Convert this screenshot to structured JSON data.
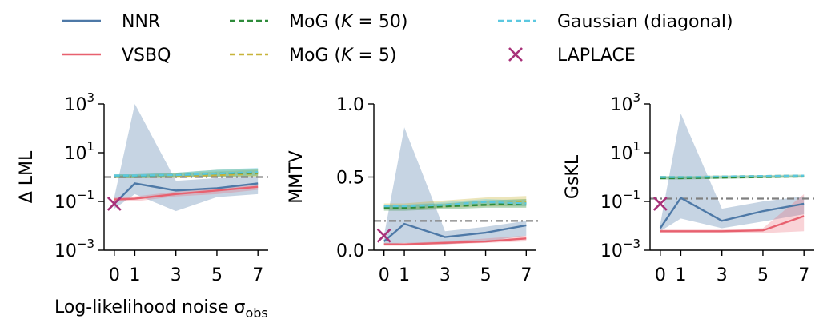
{
  "legend": [
    {
      "id": "nnr",
      "label": "NNR",
      "color": "#4e79a7",
      "style": "solid"
    },
    {
      "id": "vsbq",
      "label": "VSBQ",
      "color": "#e8616f",
      "style": "solid"
    },
    {
      "id": "mog50",
      "label": "MoG (K = 50)",
      "color": "#2e8b3a",
      "style": "dashed"
    },
    {
      "id": "mog5",
      "label": "MoG (K = 5)",
      "color": "#c8b43a",
      "style": "dashed"
    },
    {
      "id": "gauss",
      "label": "Gaussian (diagonal)",
      "color": "#5bc8e0",
      "style": "dashed"
    },
    {
      "id": "laplace",
      "label": "LAPLACE",
      "color": "#a8327a",
      "style": "marker-x"
    }
  ],
  "xlabel": "Log-likelihood noise σ",
  "xlabel_sub": "obs",
  "chart_data": [
    {
      "type": "line",
      "ylabel": "Δ LML",
      "yscale": "log",
      "ylim": [
        0.001,
        1000
      ],
      "yticks": [
        {
          "value": 0.001,
          "base": "10",
          "exp": "−3"
        },
        {
          "value": 0.1,
          "base": "10",
          "exp": "−1"
        },
        {
          "value": 10,
          "base": "10",
          "exp": "1"
        },
        {
          "value": 1000,
          "base": "10",
          "exp": "3"
        }
      ],
      "x": [
        0,
        1,
        3,
        5,
        7
      ],
      "xticks": [
        "0",
        "1",
        "3",
        "5",
        "7"
      ],
      "xlim": [
        -0.5,
        7.5
      ],
      "reference_line": 1.0,
      "laplace": {
        "x": 0,
        "y": 0.08
      },
      "series": [
        {
          "id": "nnr",
          "x": [
            0,
            1,
            3,
            5,
            7
          ],
          "values": [
            0.08,
            0.55,
            0.28,
            0.35,
            0.55
          ],
          "band_low": [
            0.05,
            0.2,
            0.04,
            0.15,
            0.2
          ],
          "band_high": [
            0.15,
            1000,
            0.7,
            0.9,
            1.0
          ]
        },
        {
          "id": "vsbq",
          "x": [
            0,
            1,
            3,
            5,
            7
          ],
          "values": [
            0.12,
            0.13,
            0.2,
            0.28,
            0.4
          ],
          "band_low": [
            0.1,
            0.1,
            0.16,
            0.2,
            0.3
          ],
          "band_high": [
            0.15,
            0.16,
            0.25,
            0.35,
            0.5
          ]
        },
        {
          "id": "mog50",
          "x": [
            0,
            1,
            3,
            5,
            7
          ],
          "values": [
            1.1,
            1.1,
            1.2,
            1.4,
            1.5
          ],
          "band_low": [
            0.9,
            0.9,
            1.0,
            1.0,
            1.1
          ],
          "band_high": [
            1.3,
            1.3,
            1.5,
            2.0,
            2.1
          ]
        },
        {
          "id": "mog5",
          "x": [
            0,
            1,
            3,
            5,
            7
          ],
          "values": [
            1.05,
            1.05,
            1.1,
            1.2,
            1.4
          ],
          "band_low": [
            0.9,
            0.9,
            0.9,
            1.0,
            1.0
          ],
          "band_high": [
            1.2,
            1.2,
            1.4,
            1.7,
            2.0
          ]
        },
        {
          "id": "gauss",
          "x": [
            0,
            1,
            3,
            5,
            7
          ],
          "values": [
            1.15,
            1.15,
            1.2,
            1.4,
            1.6
          ],
          "band_low": [
            1.0,
            1.0,
            1.0,
            1.1,
            1.2
          ],
          "band_high": [
            1.3,
            1.3,
            1.5,
            2.0,
            2.4
          ]
        }
      ]
    },
    {
      "type": "line",
      "ylabel": "MMTV",
      "yscale": "linear",
      "ylim": [
        0.0,
        1.0
      ],
      "yticks": [
        {
          "value": 0.0,
          "label": "0.0"
        },
        {
          "value": 0.5,
          "label": "0.5"
        },
        {
          "value": 1.0,
          "label": "1.0"
        }
      ],
      "x": [
        0,
        1,
        3,
        5,
        7
      ],
      "xticks": [
        "0",
        "1",
        "3",
        "5",
        "7"
      ],
      "xlim": [
        -0.5,
        7.5
      ],
      "reference_line": 0.2,
      "laplace": {
        "x": 0,
        "y": 0.1
      },
      "series": [
        {
          "id": "nnr",
          "x": [
            0,
            1,
            3,
            5,
            7
          ],
          "values": [
            0.06,
            0.18,
            0.09,
            0.12,
            0.17
          ],
          "band_low": [
            0.04,
            0.05,
            0.04,
            0.06,
            0.1
          ],
          "band_high": [
            0.1,
            0.84,
            0.13,
            0.16,
            0.2
          ]
        },
        {
          "id": "vsbq",
          "x": [
            0,
            1,
            3,
            5,
            7
          ],
          "values": [
            0.04,
            0.04,
            0.05,
            0.06,
            0.08
          ],
          "band_low": [
            0.03,
            0.03,
            0.04,
            0.05,
            0.06
          ],
          "band_high": [
            0.05,
            0.05,
            0.06,
            0.08,
            0.1
          ]
        },
        {
          "id": "mog50",
          "x": [
            0,
            1,
            3,
            5,
            7
          ],
          "values": [
            0.29,
            0.29,
            0.3,
            0.31,
            0.32
          ],
          "band_low": [
            0.27,
            0.27,
            0.28,
            0.29,
            0.29
          ],
          "band_high": [
            0.31,
            0.31,
            0.32,
            0.34,
            0.35
          ]
        },
        {
          "id": "mog5",
          "x": [
            0,
            1,
            3,
            5,
            7
          ],
          "values": [
            0.3,
            0.3,
            0.31,
            0.33,
            0.33
          ],
          "band_low": [
            0.28,
            0.28,
            0.29,
            0.3,
            0.3
          ],
          "band_high": [
            0.32,
            0.32,
            0.34,
            0.36,
            0.37
          ]
        },
        {
          "id": "gauss",
          "x": [
            0,
            1,
            3,
            5,
            7
          ],
          "values": [
            0.3,
            0.3,
            0.31,
            0.33,
            0.32
          ],
          "band_low": [
            0.29,
            0.29,
            0.3,
            0.31,
            0.3
          ],
          "band_high": [
            0.31,
            0.31,
            0.33,
            0.35,
            0.34
          ]
        }
      ]
    },
    {
      "type": "line",
      "ylabel": "GsKL",
      "yscale": "log",
      "ylim": [
        0.001,
        1000
      ],
      "yticks": [
        {
          "value": 0.001,
          "base": "10",
          "exp": "−3"
        },
        {
          "value": 0.1,
          "base": "10",
          "exp": "−1"
        },
        {
          "value": 10,
          "base": "10",
          "exp": "1"
        },
        {
          "value": 1000,
          "base": "10",
          "exp": "3"
        }
      ],
      "x": [
        0,
        1,
        3,
        5,
        7
      ],
      "xticks": [
        "0",
        "1",
        "3",
        "5",
        "7"
      ],
      "xlim": [
        -0.5,
        7.5
      ],
      "reference_line": 0.13,
      "laplace": {
        "x": 0,
        "y": 0.08
      },
      "series": [
        {
          "id": "nnr",
          "x": [
            0,
            1,
            3,
            5,
            7
          ],
          "values": [
            0.008,
            0.14,
            0.016,
            0.04,
            0.08
          ],
          "band_low": [
            0.006,
            0.02,
            0.008,
            0.015,
            0.03
          ],
          "band_high": [
            0.012,
            400,
            0.05,
            0.1,
            0.16
          ]
        },
        {
          "id": "vsbq",
          "x": [
            0,
            1,
            3,
            5,
            7
          ],
          "values": [
            0.006,
            0.006,
            0.006,
            0.0065,
            0.025
          ],
          "band_low": [
            0.005,
            0.005,
            0.005,
            0.005,
            0.006
          ],
          "band_high": [
            0.007,
            0.007,
            0.007,
            0.008,
            0.2
          ]
        },
        {
          "id": "mog50",
          "x": [
            0,
            1,
            3,
            5,
            7
          ],
          "values": [
            0.9,
            0.9,
            0.95,
            1.0,
            1.05
          ],
          "band_low": [
            0.8,
            0.8,
            0.85,
            0.9,
            0.95
          ],
          "band_high": [
            1.0,
            1.0,
            1.05,
            1.1,
            1.15
          ]
        },
        {
          "id": "mog5",
          "x": [
            0,
            1,
            3,
            5,
            7
          ],
          "values": [
            1.0,
            1.0,
            1.05,
            1.1,
            1.15
          ],
          "band_low": [
            0.9,
            0.9,
            0.95,
            1.0,
            1.05
          ],
          "band_high": [
            1.1,
            1.1,
            1.15,
            1.2,
            1.25
          ]
        },
        {
          "id": "gauss",
          "x": [
            0,
            1,
            3,
            5,
            7
          ],
          "values": [
            1.0,
            1.0,
            1.05,
            1.1,
            1.15
          ],
          "band_low": [
            0.9,
            0.9,
            0.95,
            1.0,
            1.05
          ],
          "band_high": [
            1.1,
            1.1,
            1.15,
            1.2,
            1.25
          ]
        }
      ]
    }
  ]
}
